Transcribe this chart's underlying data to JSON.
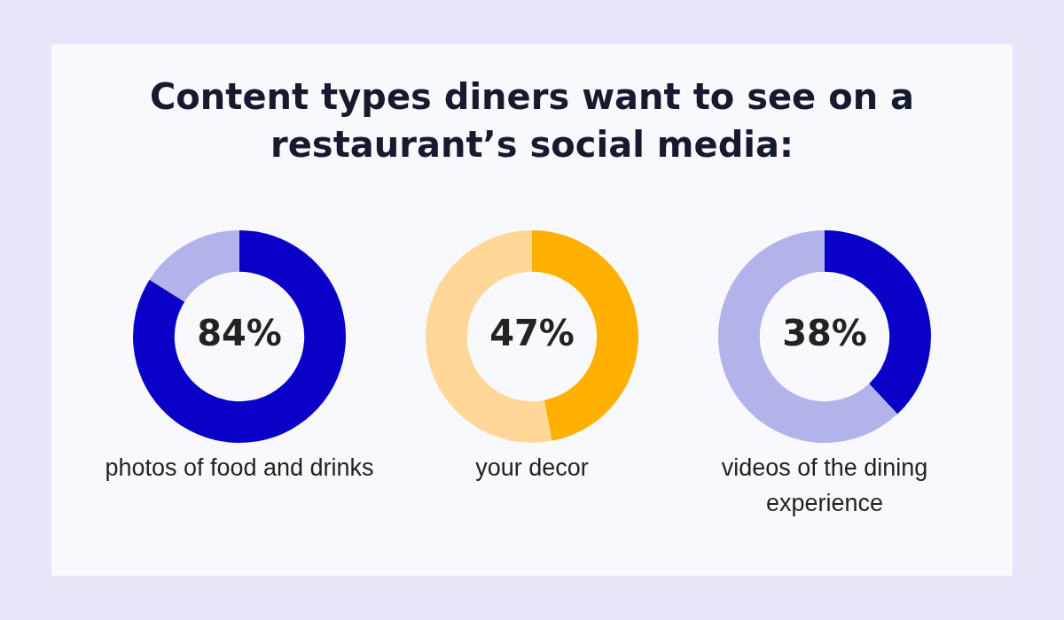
{
  "chart_data": [
    {
      "type": "donut",
      "title": "Content types diners want to see on a restaurant’s social media:",
      "xlabel": "photos of food and drinks",
      "categories": [
        null,
        null
      ],
      "values": [
        84,
        16
      ],
      "colors": [
        "#0a00c8",
        "#b3b3ec"
      ],
      "value_labels": [
        "84%",
        null
      ]
    },
    {
      "type": "donut",
      "xlabel": "your decor",
      "categories": [
        null,
        null
      ],
      "values": [
        47,
        53
      ],
      "colors": [
        "#ffb000",
        "#ffd899"
      ],
      "value_labels": [
        "47%",
        null
      ]
    },
    {
      "type": "donut",
      "xlabel": "videos of the dining experience",
      "categories": [
        null,
        null
      ],
      "values": [
        38,
        62
      ],
      "colors": [
        "#0a00c8",
        "#b3b3ec"
      ],
      "value_labels": [
        "38%",
        null
      ]
    }
  ]
}
